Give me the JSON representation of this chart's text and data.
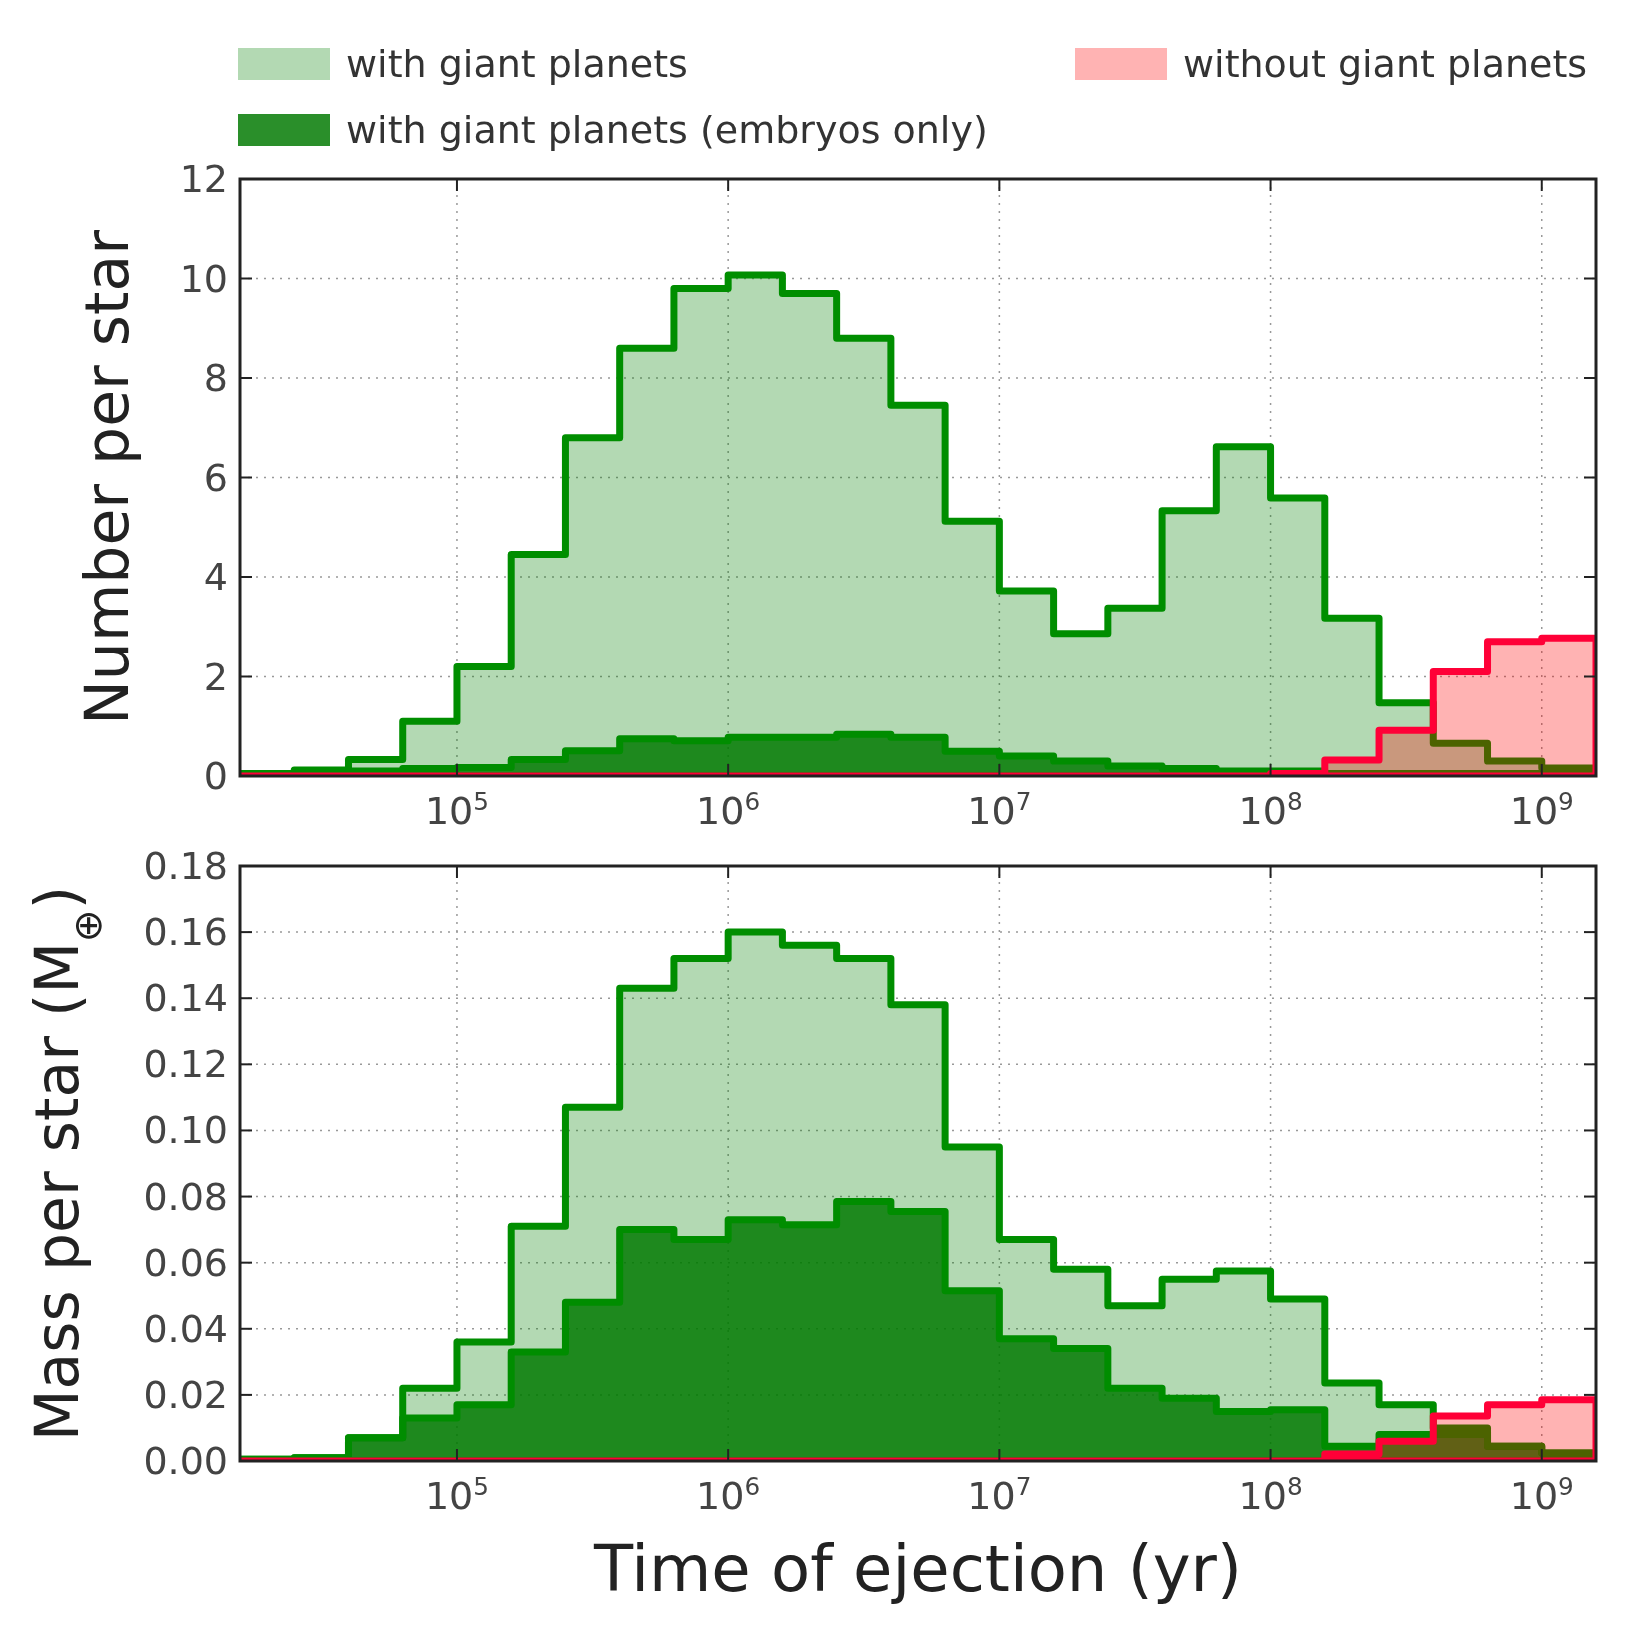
{
  "chart_data": [
    {
      "type": "histogram",
      "ylabel": "Number per star",
      "legend": "top",
      "bins": [
        15849,
        25119,
        39811,
        63096,
        100000,
        158489,
        251189,
        398107,
        630957,
        1000000,
        1584893,
        2511886,
        3981072,
        6309573,
        10000000,
        15848932,
        25118864,
        39810717,
        63095734,
        100000000,
        158489319,
        251188643,
        398107171,
        630957344,
        1000000000,
        1584893192
      ],
      "series": [
        {
          "name": "with giant planets",
          "color": "#b3d9b3",
          "values": [
            0.05,
            0.12,
            0.33,
            1.1,
            2.2,
            4.45,
            6.8,
            8.6,
            9.8,
            10.07,
            9.7,
            8.8,
            7.45,
            5.12,
            3.72,
            2.86,
            3.37,
            5.33,
            6.62,
            5.59,
            3.17,
            1.47,
            0.66,
            0.3,
            0.16
          ]
        },
        {
          "name": "with giant planets (embryos only)",
          "color": "#2a8f2a",
          "values": [
            0.03,
            0.05,
            0.1,
            0.15,
            0.17,
            0.33,
            0.51,
            0.75,
            0.71,
            0.78,
            0.78,
            0.84,
            0.78,
            0.5,
            0.4,
            0.3,
            0.2,
            0.15,
            0.1,
            0.1,
            0.05,
            0.05,
            0.05,
            0.05,
            0.05
          ]
        },
        {
          "name": "without giant planets",
          "color": "#ffb3b3",
          "values": [
            0,
            0,
            0,
            0,
            0,
            0,
            0,
            0,
            0,
            0,
            0,
            0,
            0,
            0,
            0,
            0,
            0,
            0,
            0,
            0.05,
            0.32,
            0.92,
            2.1,
            2.7,
            2.77
          ]
        }
      ],
      "xlim": [
        15849,
        1584893192
      ],
      "xticks": [
        {
          "value": 100000,
          "label": "10$^{5}$"
        },
        {
          "value": 1000000,
          "label": "10$^{6}$"
        },
        {
          "value": 10000000,
          "label": "10$^{7}$"
        },
        {
          "value": 100000000,
          "label": "10$^{8}$"
        },
        {
          "value": 1000000000,
          "label": "10$^{9}$"
        }
      ],
      "ylim": [
        0,
        12
      ],
      "yticks": [
        0,
        2,
        4,
        6,
        8,
        10,
        12
      ],
      "log": "x",
      "grid": true
    },
    {
      "type": "histogram",
      "xlabel": "Time of ejection (yr)",
      "ylabel": "Mass per star (M$_{⊕}$)",
      "bins": [
        15849,
        25119,
        39811,
        63096,
        100000,
        158489,
        251189,
        398107,
        630957,
        1000000,
        1584893,
        2511886,
        3981072,
        6309573,
        10000000,
        15848932,
        25118864,
        39810717,
        63095734,
        100000000,
        158489319,
        251188643,
        398107171,
        630957344,
        1000000000,
        1584893192
      ],
      "series": [
        {
          "color": "#b3d9b3",
          "values": [
            0.0005,
            0.001,
            0.007,
            0.022,
            0.036,
            0.071,
            0.107,
            0.143,
            0.152,
            0.16,
            0.156,
            0.152,
            0.138,
            0.095,
            0.067,
            0.058,
            0.047,
            0.055,
            0.0575,
            0.049,
            0.0236,
            0.017,
            0.01,
            0.0045,
            0.0024
          ]
        },
        {
          "color": "#2a8f2a",
          "values": [
            0.0005,
            0.001,
            0.007,
            0.013,
            0.017,
            0.033,
            0.048,
            0.07,
            0.067,
            0.073,
            0.0715,
            0.0785,
            0.0755,
            0.0515,
            0.037,
            0.034,
            0.022,
            0.019,
            0.015,
            0.0155,
            0.0045,
            0.008,
            0.008,
            0.0045,
            0.0024
          ]
        },
        {
          "color": "#ffb3b3",
          "values": [
            0,
            0,
            0,
            0,
            0,
            0,
            0,
            0,
            0,
            0,
            0,
            0,
            0,
            0,
            0,
            0,
            0,
            0,
            0,
            0,
            0.0021,
            0.006,
            0.0136,
            0.017,
            0.0185
          ]
        }
      ],
      "xlim": [
        15849,
        1584893192
      ],
      "xticks": [
        {
          "value": 100000,
          "label": "10$^{5}$"
        },
        {
          "value": 1000000,
          "label": "10$^{6}$"
        },
        {
          "value": 10000000,
          "label": "10$^{7}$"
        },
        {
          "value": 100000000,
          "label": "10$^{8}$"
        },
        {
          "value": 1000000000,
          "label": "10$^{9}$"
        }
      ],
      "ylim": [
        0,
        0.18
      ],
      "yticks": [
        {
          "value": 0,
          "label": "0.00"
        },
        {
          "value": 0.02,
          "label": "0.02"
        },
        {
          "value": 0.04,
          "label": "0.04"
        },
        {
          "value": 0.06,
          "label": "0.06"
        },
        {
          "value": 0.08,
          "label": "0.08"
        },
        {
          "value": 0.1,
          "label": "0.10"
        },
        {
          "value": 0.12,
          "label": "0.12"
        },
        {
          "value": 0.14,
          "label": "0.14"
        },
        {
          "value": 0.16,
          "label": "0.16"
        },
        {
          "value": 0.18,
          "label": "0.18"
        }
      ],
      "log": "x",
      "grid": true
    }
  ]
}
